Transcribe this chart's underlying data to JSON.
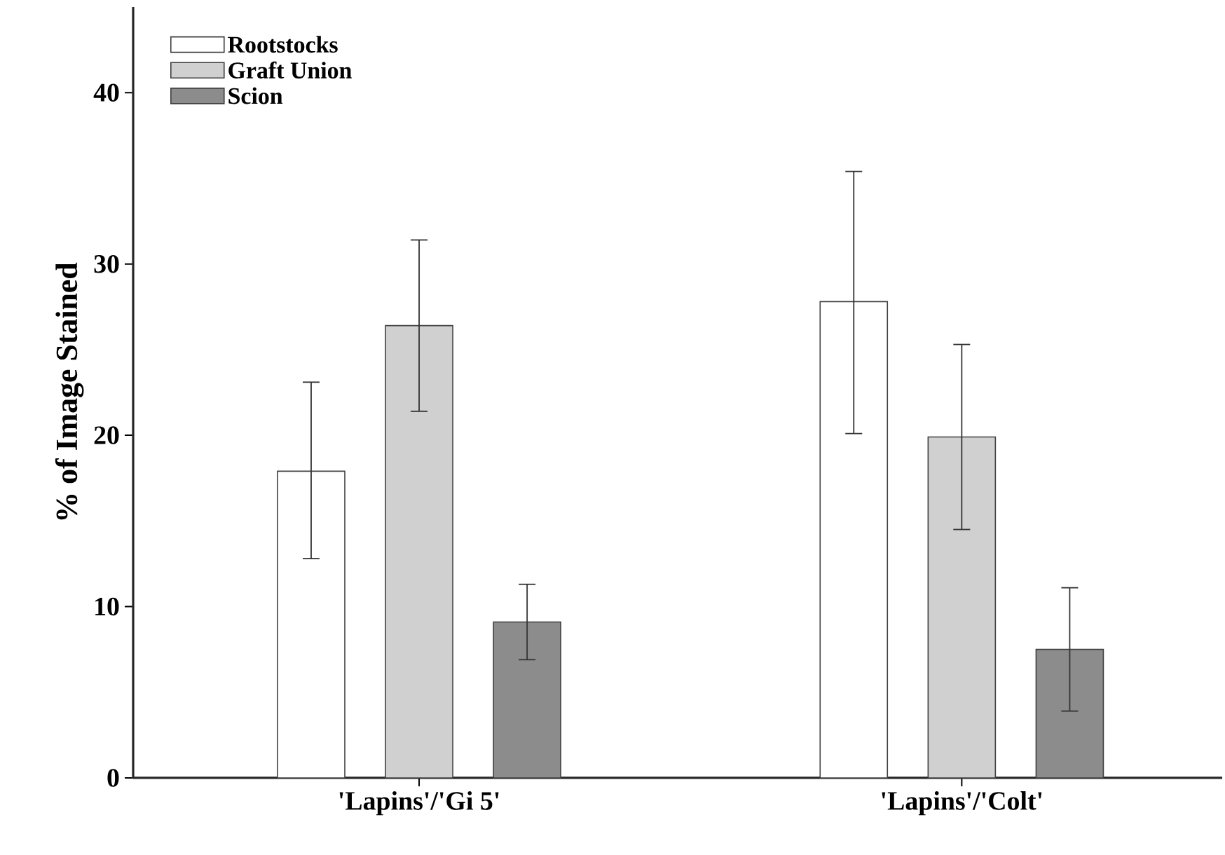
{
  "chart_data": {
    "type": "bar",
    "ylabel": "% of Image Stained",
    "categories": [
      "'Lapins'/'Gi 5'",
      "'Lapins'/'Colt'"
    ],
    "series": [
      {
        "name": "Rootstocks",
        "color": "#ffffff",
        "values": [
          17.9,
          27.8
        ],
        "errors": [
          [
            12.8,
            23.1
          ],
          [
            20.1,
            35.4
          ]
        ]
      },
      {
        "name": "Graft Union",
        "color": "#d0d0d0",
        "values": [
          26.4,
          19.9
        ],
        "errors": [
          [
            21.4,
            31.4
          ],
          [
            14.5,
            25.3
          ]
        ]
      },
      {
        "name": "Scion",
        "color": "#8c8c8c",
        "values": [
          9.1,
          7.5
        ],
        "errors": [
          [
            6.9,
            11.3
          ],
          [
            3.9,
            11.1
          ]
        ]
      }
    ],
    "ylim": [
      0,
      45
    ],
    "yticks": [
      0,
      10,
      20,
      30,
      40
    ],
    "grid": false,
    "legend": "top left"
  }
}
